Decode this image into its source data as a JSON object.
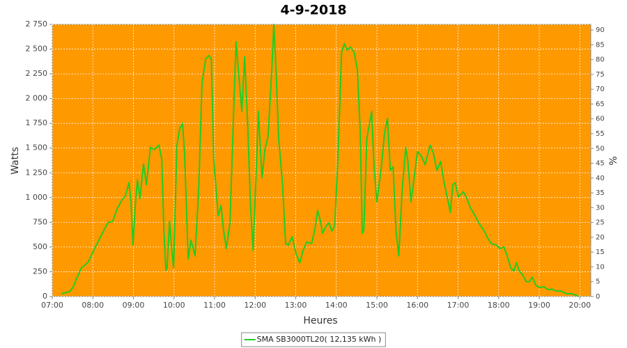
{
  "chart_data": {
    "type": "line",
    "title": "4-9-2018",
    "xlabel": "Heures",
    "ylabel": "Watts",
    "y2label": "%",
    "xlim": [
      7,
      20.27
    ],
    "xticks": [
      {
        "value": 7,
        "label": "07:00"
      },
      {
        "value": 8,
        "label": "08:00"
      },
      {
        "value": 9,
        "label": "09:00"
      },
      {
        "value": 10,
        "label": "10:00"
      },
      {
        "value": 11,
        "label": "11:00"
      },
      {
        "value": 12,
        "label": "12:00"
      },
      {
        "value": 13,
        "label": "13:00"
      },
      {
        "value": 14,
        "label": "14:00"
      },
      {
        "value": 15,
        "label": "15:00"
      },
      {
        "value": 16,
        "label": "16:00"
      },
      {
        "value": 17,
        "label": "17:00"
      },
      {
        "value": 18,
        "label": "18:00"
      },
      {
        "value": 19,
        "label": "19:00"
      },
      {
        "value": 20,
        "label": "20:00"
      }
    ],
    "ylim": [
      0,
      2750
    ],
    "yticks": [
      0,
      250,
      500,
      750,
      {
        "value": 1000,
        "label": "1 000"
      },
      {
        "value": 1250,
        "label": "1 250"
      },
      {
        "value": 1500,
        "label": "1 500"
      },
      {
        "value": 1750,
        "label": "1 750"
      },
      {
        "value": 2000,
        "label": "2 000"
      },
      {
        "value": 2250,
        "label": "2 250"
      },
      {
        "value": 2500,
        "label": "2 500"
      },
      {
        "value": 2750,
        "label": "2 750"
      }
    ],
    "y2lim": [
      0,
      91.9
    ],
    "y2ticks": [
      0,
      5,
      10,
      15,
      20,
      25,
      30,
      35,
      40,
      45,
      50,
      55,
      60,
      65,
      70,
      75,
      80,
      85,
      90
    ],
    "grid": true,
    "background": "#ff9900",
    "legend": "bottom",
    "x": [
      7.22,
      7.34,
      7.43,
      7.52,
      7.6,
      7.72,
      7.81,
      7.89,
      7.98,
      8.06,
      8.15,
      8.25,
      8.37,
      8.49,
      8.6,
      8.72,
      8.8,
      8.89,
      8.94,
      8.99,
      9.04,
      9.1,
      9.16,
      9.25,
      9.32,
      9.42,
      9.52,
      9.63,
      9.7,
      9.75,
      9.8,
      9.83,
      9.89,
      9.94,
      9.99,
      10.07,
      10.14,
      10.21,
      10.26,
      10.35,
      10.42,
      10.52,
      10.61,
      10.69,
      10.78,
      10.86,
      10.92,
      10.98,
      11.09,
      11.16,
      11.22,
      11.29,
      11.38,
      11.47,
      11.53,
      11.6,
      11.67,
      11.74,
      11.81,
      11.89,
      11.95,
      12.03,
      12.08,
      12.13,
      12.17,
      12.24,
      12.32,
      12.41,
      12.46,
      12.51,
      12.58,
      12.67,
      12.75,
      12.82,
      12.91,
      13.01,
      13.1,
      13.18,
      13.27,
      13.39,
      13.47,
      13.54,
      13.61,
      13.66,
      13.75,
      13.82,
      13.89,
      13.96,
      14.04,
      14.13,
      14.2,
      14.26,
      14.35,
      14.44,
      14.52,
      14.59,
      14.64,
      14.68,
      14.75,
      14.87,
      14.93,
      15.0,
      15.11,
      15.19,
      15.26,
      15.33,
      15.4,
      15.47,
      15.54,
      15.62,
      15.71,
      15.76,
      15.84,
      15.93,
      16.0,
      16.1,
      16.19,
      16.31,
      16.39,
      16.48,
      16.57,
      16.65,
      16.74,
      16.81,
      16.87,
      16.93,
      17.01,
      17.13,
      17.22,
      17.3,
      17.42,
      17.53,
      17.65,
      17.73,
      17.82,
      17.94,
      18.03,
      18.13,
      18.21,
      18.3,
      18.37,
      18.44,
      18.51,
      18.59,
      18.68,
      18.76,
      18.83,
      18.92,
      19.02,
      19.11,
      19.21,
      19.31,
      19.42,
      19.54,
      19.66,
      19.79,
      19.9,
      19.97
    ],
    "series": [
      {
        "name": "SMA SB3000TL20( 12,135 kWh )",
        "color": "#22cc22",
        "values": [
          28,
          40,
          50,
          100,
          180,
          290,
          320,
          350,
          430,
          500,
          570,
          650,
          745,
          760,
          885,
          980,
          1010,
          1150,
          955,
          520,
          885,
          1180,
          990,
          1340,
          1130,
          1505,
          1485,
          1530,
          1380,
          675,
          265,
          290,
          760,
          500,
          290,
          1520,
          1695,
          1750,
          1450,
          380,
          570,
          410,
          1100,
          2150,
          2400,
          2435,
          2400,
          1380,
          815,
          920,
          675,
          485,
          745,
          1870,
          2575,
          2220,
          1870,
          2420,
          1800,
          885,
          465,
          1310,
          1870,
          1485,
          1200,
          1485,
          1625,
          2290,
          2750,
          2330,
          1590,
          1165,
          535,
          520,
          605,
          430,
          340,
          465,
          550,
          535,
          675,
          870,
          760,
          640,
          710,
          745,
          660,
          710,
          1410,
          2470,
          2555,
          2490,
          2520,
          2470,
          2290,
          1660,
          640,
          675,
          1590,
          1870,
          1310,
          955,
          1310,
          1660,
          1800,
          1275,
          1310,
          675,
          410,
          1060,
          1505,
          1380,
          955,
          1240,
          1465,
          1415,
          1330,
          1530,
          1450,
          1275,
          1365,
          1165,
          990,
          850,
          1130,
          1150,
          1005,
          1060,
          990,
          900,
          815,
          730,
          660,
          590,
          535,
          520,
          485,
          500,
          410,
          290,
          255,
          340,
          255,
          220,
          150,
          150,
          195,
          110,
          90,
          100,
          70,
          75,
          55,
          55,
          28,
          28,
          15,
          0
        ]
      }
    ]
  }
}
